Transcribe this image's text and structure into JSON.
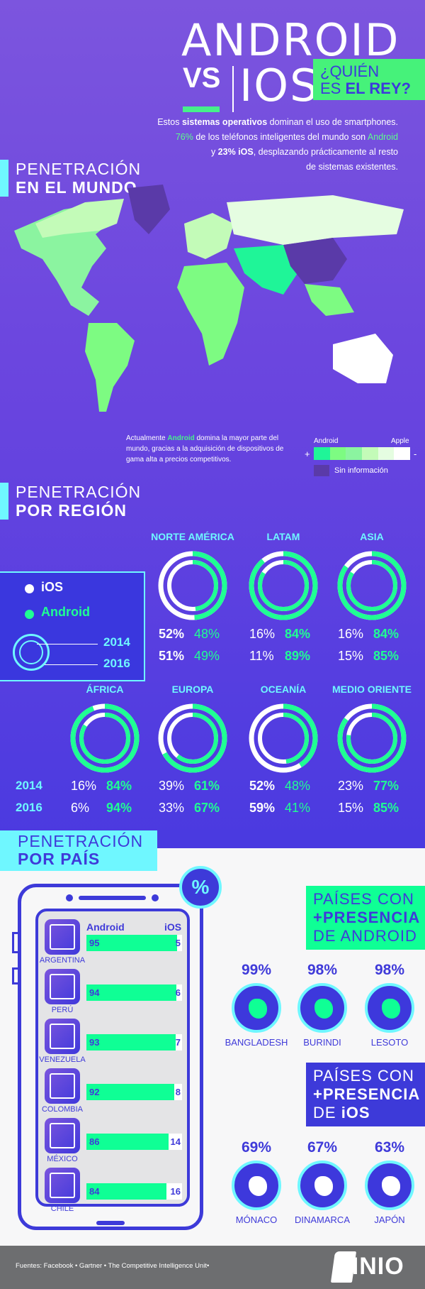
{
  "header": {
    "title_android": "ANDROID",
    "title_vs": "VS",
    "title_ios": "IOS",
    "question_line1": "¿QUIÉN",
    "question_line2_a": "ES ",
    "question_line2_b": "EL REY?",
    "intro": {
      "l1_a": "Estos ",
      "l1_b": "sistemas operativos",
      "l1_c": " dominan el uso de smartphones.",
      "l2_a": "76%",
      "l2_b": " de los teléfonos inteligentes del mundo son ",
      "l2_c": "Android",
      "l3_a": "y ",
      "l3_b": "23% iOS",
      "l3_c": ", desplazando prácticamente al resto",
      "l4": "de sistemas existentes."
    }
  },
  "world": {
    "heading_light": "PENETRACIÓN",
    "heading_bold": "EN EL MUNDO",
    "caption_a": "Actualmente ",
    "caption_b": "Android",
    "caption_c": " domina la mayor parte del mundo, gracias a la adquisición de dispositivos de gama alta a precios competitivos.",
    "legend": {
      "left_label": "Android",
      "right_label": "Apple",
      "plus": "+",
      "minus": "-",
      "scale_colors": [
        "#1ff598",
        "#7dfb82",
        "#8bf4a0",
        "#c3fbb8",
        "#e5fde1",
        "#ffffff"
      ],
      "no_info_label": "Sin información",
      "no_info_color": "#5a3aa8"
    }
  },
  "regions": {
    "heading_light": "PENETRACIÓN",
    "heading_bold": "POR REGIÓN",
    "legend": {
      "ios": "iOS",
      "android": "Android",
      "year1": "2014",
      "year2": "2016"
    },
    "years": [
      "2014",
      "2016"
    ],
    "colors": {
      "ios": "#ffffff",
      "android": "#1fff93"
    },
    "items": [
      {
        "name": "NORTE AMÉRICA",
        "ios_2014": "52%",
        "android_2014": "48%",
        "ios_2016": "51%",
        "android_2016": "49%",
        "a14": 48,
        "a16": 49
      },
      {
        "name": "LATAM",
        "ios_2014": "16%",
        "android_2014": "84%",
        "ios_2016": "11%",
        "android_2016": "89%",
        "a14": 84,
        "a16": 89
      },
      {
        "name": "ASIA",
        "ios_2014": "16%",
        "android_2014": "84%",
        "ios_2016": "15%",
        "android_2016": "85%",
        "a14": 84,
        "a16": 85
      },
      {
        "name": "ÁFRICA",
        "ios_2014": "16%",
        "android_2014": "84%",
        "ios_2016": "6%",
        "android_2016": "94%",
        "a14": 84,
        "a16": 94
      },
      {
        "name": "EUROPA",
        "ios_2014": "39%",
        "android_2014": "61%",
        "ios_2016": "33%",
        "android_2016": "67%",
        "a14": 61,
        "a16": 67
      },
      {
        "name": "OCEANÍA",
        "ios_2014": "52%",
        "android_2014": "48%",
        "ios_2016": "59%",
        "android_2016": "41%",
        "a14": 48,
        "a16": 41
      },
      {
        "name": "MEDIO ORIENTE",
        "ios_2014": "23%",
        "android_2014": "77%",
        "ios_2016": "15%",
        "android_2016": "85%",
        "a14": 77,
        "a16": 85
      }
    ]
  },
  "countries": {
    "heading_light": "PENETRACIÓN",
    "heading_bold": "POR PAÍS",
    "percent_badge": "%",
    "col_android": "Android",
    "col_ios": "iOS",
    "rows": [
      {
        "name": "ARGENTINA",
        "android": 95,
        "ios": 5
      },
      {
        "name": "PERÚ",
        "android": 94,
        "ios": 6
      },
      {
        "name": "VENEZUELA",
        "android": 93,
        "ios": 7
      },
      {
        "name": "COLOMBIA",
        "android": 92,
        "ios": 8
      },
      {
        "name": "MÉXICO",
        "android": 86,
        "ios": 14
      },
      {
        "name": "CHILE",
        "android": 84,
        "ios": 16
      }
    ],
    "android_top": {
      "l1": "PAÍSES CON",
      "l2": "+PRESENCIA",
      "l3": "DE ANDROID",
      "items": [
        {
          "pct": "99%",
          "name": "BANGLADESH"
        },
        {
          "pct": "98%",
          "name": "BURINDI"
        },
        {
          "pct": "98%",
          "name": "LESOTO"
        }
      ]
    },
    "ios_top": {
      "l1": "PAÍSES CON",
      "l2": "+PRESENCIA",
      "l3a": "DE ",
      "l3b": "iOS",
      "items": [
        {
          "pct": "69%",
          "name": "MÓNACO"
        },
        {
          "pct": "67%",
          "name": "DINAMARCA"
        },
        {
          "pct": "63%",
          "name": "JAPÓN"
        }
      ]
    }
  },
  "footer": {
    "sources": "Fuentes: Facebook  •  Gartner  •  The Competitive Intelligence Unit•",
    "logo": "LINIO"
  }
}
